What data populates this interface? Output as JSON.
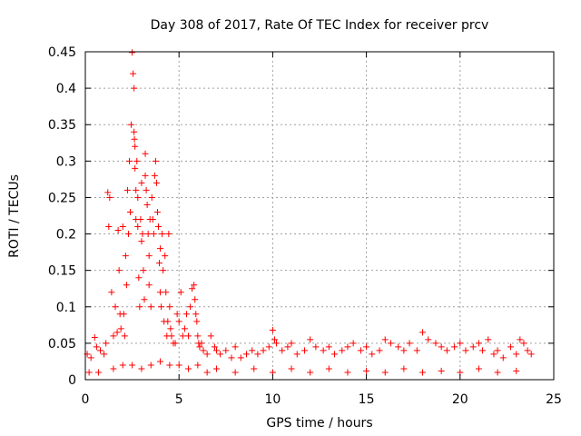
{
  "chart_data": {
    "type": "scatter",
    "title": "Day 308 of 2017, Rate Of TEC Index for receiver prcv",
    "xlabel": "GPS time / hours",
    "ylabel": "ROTI / TECUs",
    "xlim": [
      0,
      25
    ],
    "ylim": [
      0,
      0.45
    ],
    "xticks": [
      0,
      5,
      10,
      15,
      20,
      25
    ],
    "xtick_labels": [
      "0",
      "5",
      "10",
      "15",
      "20",
      "25"
    ],
    "yticks": [
      0,
      0.05,
      0.1,
      0.15,
      0.2,
      0.25,
      0.3,
      0.35,
      0.4,
      0.45
    ],
    "ytick_labels": [
      "0",
      "0.05",
      "0.1",
      "0.15",
      "0.2",
      "0.25",
      "0.3",
      "0.35",
      "0.4",
      "0.45"
    ],
    "grid": true,
    "marker": "+",
    "color": "#ff0000",
    "series": [
      {
        "name": "ROTI",
        "x": [
          0.1,
          0.3,
          0.5,
          0.6,
          0.8,
          1.0,
          1.1,
          1.2,
          1.25,
          1.3,
          1.4,
          1.5,
          1.6,
          1.7,
          1.75,
          1.8,
          1.85,
          1.9,
          2.0,
          2.05,
          2.1,
          2.15,
          2.2,
          2.25,
          2.3,
          2.35,
          2.4,
          2.45,
          2.5,
          2.55,
          2.6,
          2.6,
          2.62,
          2.65,
          2.65,
          2.7,
          2.7,
          2.75,
          2.8,
          2.8,
          2.85,
          2.9,
          2.95,
          3.0,
          3.0,
          3.05,
          3.1,
          3.15,
          3.2,
          3.2,
          3.25,
          3.3,
          3.35,
          3.4,
          3.4,
          3.45,
          3.5,
          3.55,
          3.6,
          3.65,
          3.7,
          3.75,
          3.8,
          3.85,
          3.9,
          3.95,
          4.0,
          4.0,
          4.05,
          4.1,
          4.15,
          4.2,
          4.25,
          4.3,
          4.35,
          4.4,
          4.45,
          4.5,
          4.55,
          4.6,
          4.7,
          4.8,
          4.9,
          5.0,
          5.1,
          5.2,
          5.3,
          5.4,
          5.5,
          5.6,
          5.7,
          5.8,
          5.85,
          5.9,
          5.95,
          6.0,
          6.05,
          6.1,
          6.2,
          6.3,
          6.5,
          6.7,
          6.9,
          7.0,
          7.2,
          7.5,
          7.8,
          8.0,
          8.3,
          8.6,
          8.9,
          9.2,
          9.5,
          9.8,
          10.0,
          10.1,
          10.2,
          10.5,
          10.8,
          11.0,
          11.3,
          11.7,
          12.0,
          12.3,
          12.7,
          13.0,
          13.3,
          13.7,
          14.0,
          14.3,
          14.7,
          15.0,
          15.3,
          15.7,
          16.0,
          16.3,
          16.7,
          17.0,
          17.3,
          17.7,
          18.0,
          18.3,
          18.7,
          19.0,
          19.3,
          19.7,
          20.0,
          20.3,
          20.7,
          21.0,
          21.2,
          21.5,
          21.8,
          22.0,
          22.3,
          22.7,
          23.0,
          23.2,
          23.4,
          23.6,
          23.8,
          0.2,
          0.7,
          1.5,
          2.0,
          2.5,
          3.0,
          3.5,
          4.0,
          4.5,
          5.0,
          5.5,
          6.0,
          6.5,
          7.0,
          8.0,
          9.0,
          10.0,
          11.0,
          12.0,
          13.0,
          14.0,
          15.0,
          16.0,
          17.0,
          18.0,
          19.0,
          20.0,
          21.0,
          22.0,
          23.0
        ],
        "y": [
          0.035,
          0.03,
          0.058,
          0.045,
          0.04,
          0.035,
          0.05,
          0.257,
          0.21,
          0.25,
          0.12,
          0.06,
          0.1,
          0.065,
          0.205,
          0.15,
          0.09,
          0.07,
          0.21,
          0.09,
          0.06,
          0.17,
          0.13,
          0.26,
          0.2,
          0.3,
          0.23,
          0.35,
          0.449,
          0.42,
          0.4,
          0.34,
          0.33,
          0.32,
          0.29,
          0.26,
          0.22,
          0.3,
          0.25,
          0.21,
          0.14,
          0.1,
          0.22,
          0.19,
          0.27,
          0.2,
          0.15,
          0.11,
          0.31,
          0.28,
          0.26,
          0.24,
          0.2,
          0.17,
          0.13,
          0.22,
          0.1,
          0.25,
          0.22,
          0.2,
          0.28,
          0.3,
          0.27,
          0.23,
          0.21,
          0.16,
          0.18,
          0.12,
          0.1,
          0.2,
          0.15,
          0.08,
          0.17,
          0.12,
          0.06,
          0.08,
          0.2,
          0.1,
          0.07,
          0.06,
          0.05,
          0.05,
          0.09,
          0.08,
          0.12,
          0.06,
          0.07,
          0.09,
          0.06,
          0.1,
          0.125,
          0.13,
          0.11,
          0.09,
          0.08,
          0.06,
          0.05,
          0.045,
          0.05,
          0.04,
          0.035,
          0.06,
          0.045,
          0.04,
          0.035,
          0.04,
          0.03,
          0.045,
          0.03,
          0.035,
          0.04,
          0.035,
          0.04,
          0.045,
          0.068,
          0.055,
          0.05,
          0.04,
          0.045,
          0.05,
          0.035,
          0.04,
          0.055,
          0.045,
          0.04,
          0.045,
          0.035,
          0.04,
          0.045,
          0.05,
          0.04,
          0.045,
          0.035,
          0.04,
          0.055,
          0.05,
          0.045,
          0.04,
          0.05,
          0.04,
          0.065,
          0.055,
          0.05,
          0.045,
          0.04,
          0.045,
          0.05,
          0.04,
          0.045,
          0.05,
          0.04,
          0.055,
          0.035,
          0.04,
          0.03,
          0.045,
          0.035,
          0.055,
          0.05,
          0.04,
          0.035,
          0.01,
          0.01,
          0.015,
          0.02,
          0.02,
          0.015,
          0.02,
          0.025,
          0.02,
          0.02,
          0.015,
          0.02,
          0.01,
          0.015,
          0.01,
          0.015,
          0.01,
          0.015,
          0.01,
          0.015,
          0.01,
          0.012,
          0.01,
          0.015,
          0.01,
          0.012,
          0.01,
          0.015,
          0.01,
          0.012
        ]
      }
    ]
  }
}
